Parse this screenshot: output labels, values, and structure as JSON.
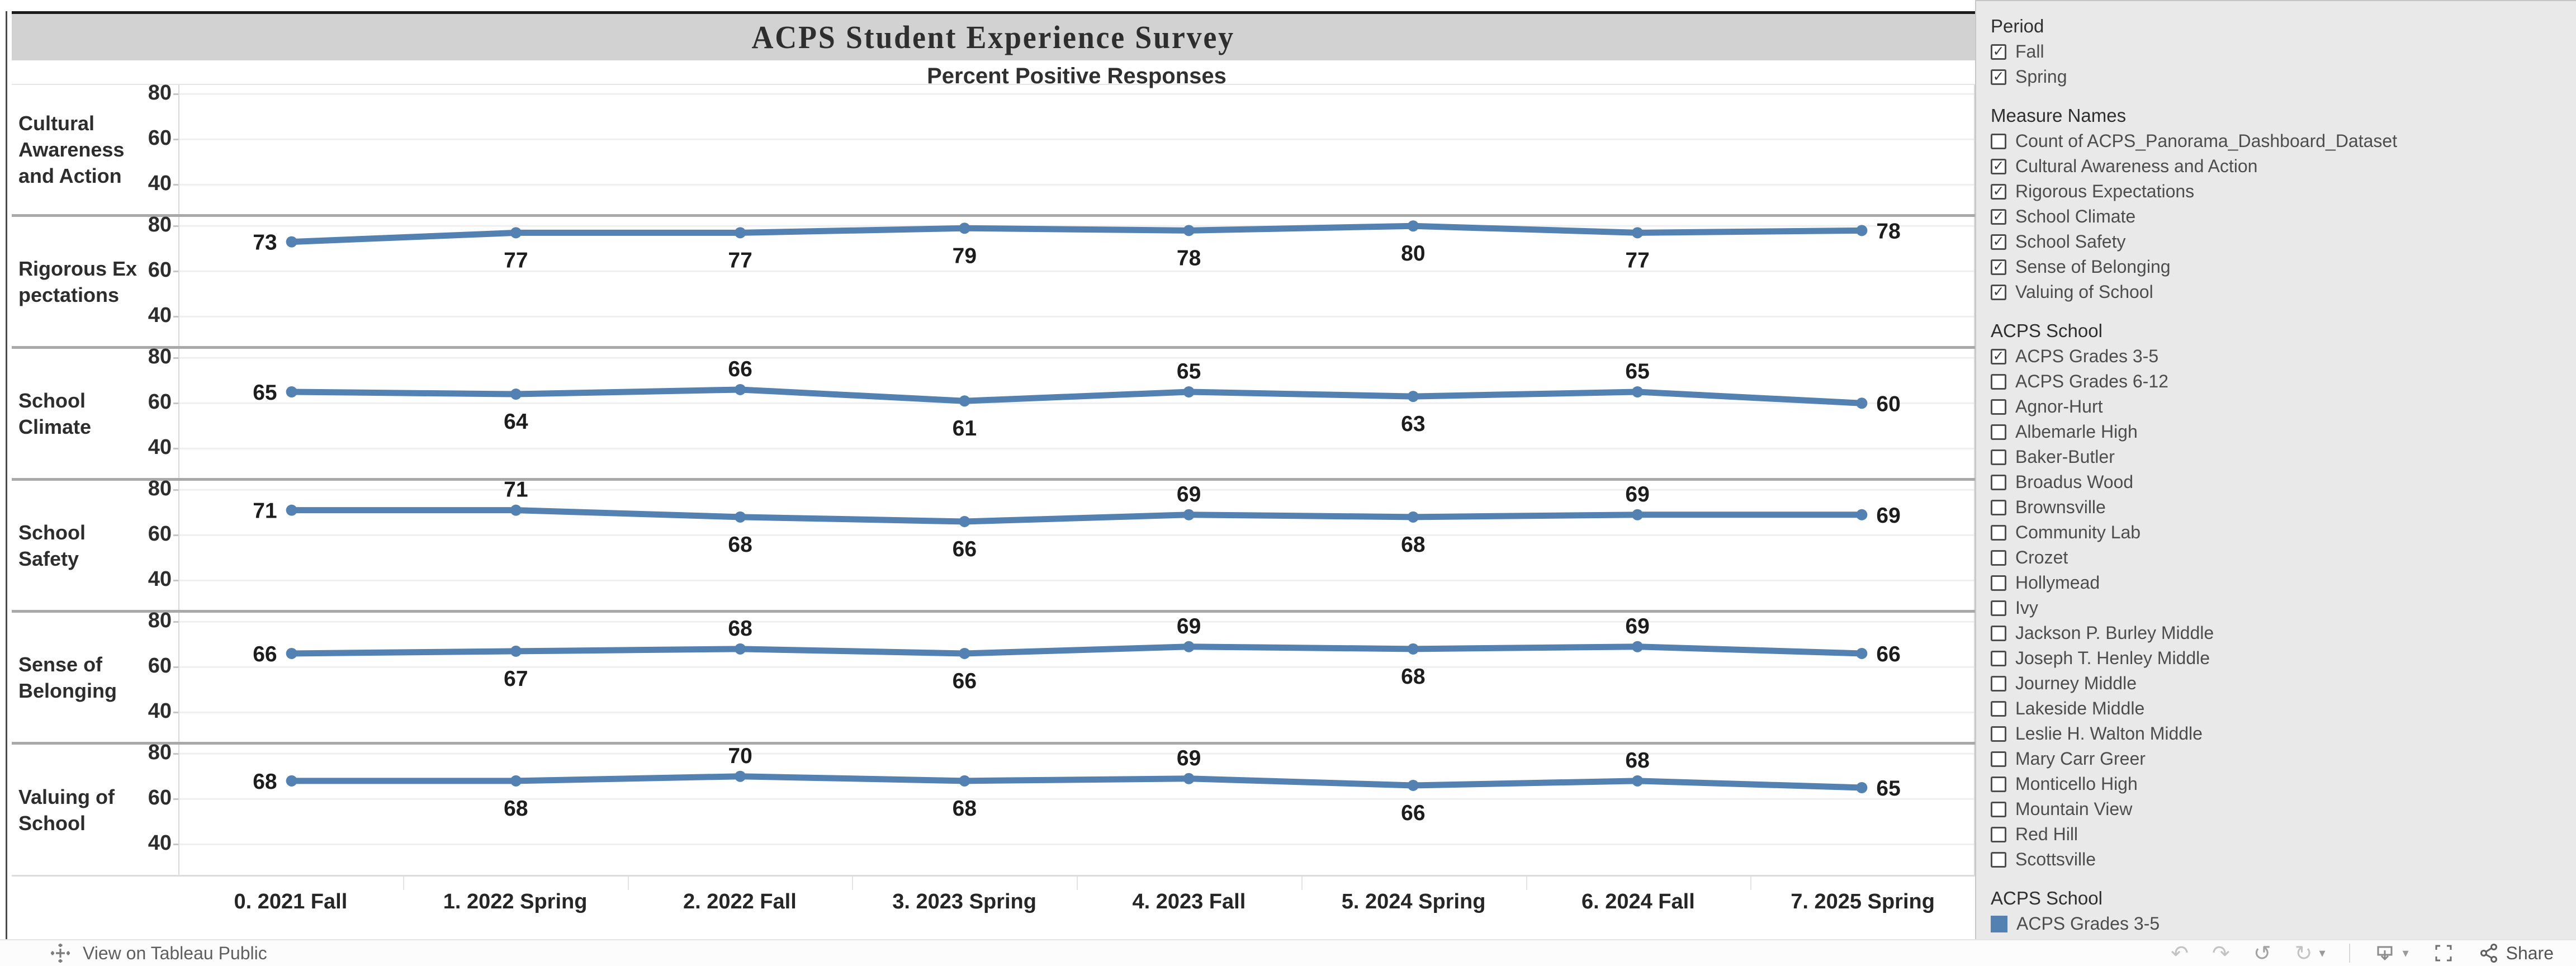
{
  "title": "ACPS  Student  Experience  Survey",
  "subtitle": "Percent Positive Responses",
  "chart_data": {
    "type": "line",
    "title": "Percent Positive Responses",
    "categories": [
      "0. 2021 Fall",
      "1. 2022 Spring",
      "2. 2022 Fall",
      "3. 2023 Spring",
      "4. 2023 Fall",
      "5. 2024 Spring",
      "6. 2024 Fall",
      "7. 2025 Spring"
    ],
    "yticks": [
      80,
      60,
      40
    ],
    "ylim": [
      27,
      84
    ],
    "grid": true,
    "legend_position": "right-bottom",
    "line_color": "#5381b1",
    "series": [
      {
        "name": "Cultural Awareness and Action",
        "label_lines": [
          "Cultural",
          "Awareness",
          "and Action"
        ],
        "values": null,
        "label_pos": null
      },
      {
        "name": "Rigorous Expectations",
        "label_lines": [
          "Rigorous Ex",
          "pectations"
        ],
        "values": [
          73,
          77,
          77,
          79,
          78,
          80,
          77,
          78
        ],
        "label_pos": [
          "left",
          "below",
          "below",
          "below",
          "below",
          "below",
          "below",
          "right"
        ]
      },
      {
        "name": "School Climate",
        "label_lines": [
          "School",
          "Climate"
        ],
        "values": [
          65,
          64,
          66,
          61,
          65,
          63,
          65,
          60
        ],
        "label_pos": [
          "left",
          "below",
          "above",
          "below",
          "above",
          "below",
          "above",
          "right"
        ]
      },
      {
        "name": "School Safety",
        "label_lines": [
          "School",
          "Safety"
        ],
        "values": [
          71,
          71,
          68,
          66,
          69,
          68,
          69,
          69
        ],
        "label_pos": [
          "left",
          "above",
          "below",
          "below",
          "above",
          "below",
          "above",
          "right"
        ]
      },
      {
        "name": "Sense of Belonging",
        "label_lines": [
          "Sense of",
          "Belonging"
        ],
        "values": [
          66,
          67,
          68,
          66,
          69,
          68,
          69,
          66
        ],
        "label_pos": [
          "left",
          "below",
          "above",
          "below",
          "above",
          "below",
          "above",
          "right"
        ]
      },
      {
        "name": "Valuing of School",
        "label_lines": [
          "Valuing of",
          "School"
        ],
        "values": [
          68,
          68,
          70,
          68,
          69,
          66,
          68,
          65
        ],
        "label_pos": [
          "left",
          "below",
          "above",
          "below",
          "above",
          "below",
          "above",
          "right"
        ]
      }
    ]
  },
  "filters": [
    {
      "title": "Period",
      "items": [
        {
          "label": "Fall",
          "checked": true
        },
        {
          "label": "Spring",
          "checked": true
        }
      ]
    },
    {
      "title": "Measure Names",
      "items": [
        {
          "label": "Count of ACPS_Panorama_Dashboard_Dataset",
          "checked": false
        },
        {
          "label": "Cultural Awareness and Action",
          "checked": true
        },
        {
          "label": "Rigorous Expectations",
          "checked": true
        },
        {
          "label": "School Climate",
          "checked": true
        },
        {
          "label": "School Safety",
          "checked": true
        },
        {
          "label": "Sense of Belonging",
          "checked": true
        },
        {
          "label": "Valuing of School",
          "checked": true
        }
      ]
    },
    {
      "title": "ACPS  School",
      "items": [
        {
          "label": "ACPS Grades 3-5",
          "checked": true
        },
        {
          "label": "ACPS Grades 6-12",
          "checked": false
        },
        {
          "label": "Agnor-Hurt",
          "checked": false
        },
        {
          "label": "Albemarle High",
          "checked": false
        },
        {
          "label": "Baker-Butler",
          "checked": false
        },
        {
          "label": "Broadus Wood",
          "checked": false
        },
        {
          "label": "Brownsville",
          "checked": false
        },
        {
          "label": "Community Lab",
          "checked": false
        },
        {
          "label": "Crozet",
          "checked": false
        },
        {
          "label": "Hollymead",
          "checked": false
        },
        {
          "label": "Ivy",
          "checked": false
        },
        {
          "label": "Jackson P. Burley Middle",
          "checked": false
        },
        {
          "label": "Joseph T. Henley Middle",
          "checked": false
        },
        {
          "label": "Journey Middle",
          "checked": false
        },
        {
          "label": "Lakeside Middle",
          "checked": false
        },
        {
          "label": "Leslie H. Walton Middle",
          "checked": false
        },
        {
          "label": "Mary Carr Greer",
          "checked": false
        },
        {
          "label": "Monticello High",
          "checked": false
        },
        {
          "label": "Mountain View",
          "checked": false
        },
        {
          "label": "Red Hill",
          "checked": false
        },
        {
          "label": "Scottsville",
          "checked": false
        }
      ]
    }
  ],
  "legend": {
    "title": "ACPS  School",
    "items": [
      {
        "label": "ACPS Grades 3-5",
        "color": "#5381b1"
      }
    ]
  },
  "toolbar": {
    "view_label": "View on Tableau Public",
    "share_label": "Share"
  }
}
